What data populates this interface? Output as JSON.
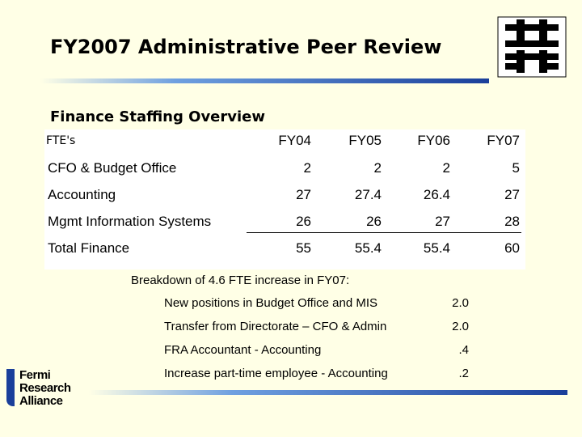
{
  "header": {
    "title": "FY2007 Administrative Peer Review"
  },
  "subtitle": "Finance Staffing Overview",
  "table": {
    "columns": [
      "FTE's",
      "FY04",
      "FY05",
      "FY06",
      "FY07"
    ],
    "rows": [
      [
        "CFO & Budget Office",
        "2",
        "2",
        "2",
        "5"
      ],
      [
        "Accounting",
        "27",
        "27.4",
        "26.4",
        "27"
      ],
      [
        "Mgmt Information Systems",
        "26",
        "26",
        "27",
        "28"
      ],
      [
        "Total Finance",
        "55",
        "55.4",
        "55.4",
        "60"
      ]
    ]
  },
  "breakdown": {
    "heading": "Breakdown of 4.6 FTE increase in FY07:",
    "items": [
      {
        "label": "New positions in Budget Office and MIS",
        "value": "2.0"
      },
      {
        "label": "Transfer from Directorate – CFO & Admin",
        "value": "2.0"
      },
      {
        "label": "FRA Accountant - Accounting",
        "value": ".4"
      },
      {
        "label": "Increase part-time employee - Accounting",
        "value": ".2"
      }
    ]
  },
  "footer_logo": {
    "lines": [
      "Fermi",
      "Research",
      "Alliance"
    ]
  }
}
